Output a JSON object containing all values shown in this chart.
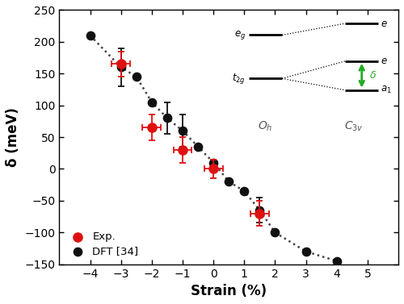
{
  "dft_x": [
    -4.0,
    -3.0,
    -2.5,
    -2.0,
    -1.5,
    -1.0,
    -0.5,
    0.0,
    0.5,
    1.0,
    1.5,
    2.0,
    3.0,
    4.0
  ],
  "dft_y": [
    210,
    160,
    145,
    105,
    80,
    60,
    35,
    10,
    -20,
    -35,
    -65,
    -100,
    -130,
    -145
  ],
  "dft_yerr_map": {
    "-3.0": 30,
    "-1.5": 25,
    "-1.0": 25,
    "1.5": 20
  },
  "exp_x": [
    -3.0,
    -2.0,
    -1.0,
    0.0,
    1.5
  ],
  "exp_y": [
    165,
    65,
    30,
    0,
    -70
  ],
  "exp_xerr": [
    0.3,
    0.3,
    0.3,
    0.3,
    0.3
  ],
  "exp_yerr": [
    20,
    20,
    20,
    15,
    20
  ],
  "xlim": [
    -5,
    6
  ],
  "ylim": [
    -150,
    250
  ],
  "xticks": [
    -4,
    -3,
    -2,
    -1,
    0,
    1,
    2,
    3,
    4,
    5
  ],
  "yticks": [
    -150,
    -100,
    -50,
    0,
    50,
    100,
    150,
    200,
    250
  ],
  "xlabel": "Strain (%)",
  "ylabel": "δ (meV)",
  "dft_color": "#111111",
  "exp_color": "#dd1111",
  "dotted_line_color": "#444444",
  "background_color": "#ffffff",
  "green_arrow_color": "#22aa22"
}
